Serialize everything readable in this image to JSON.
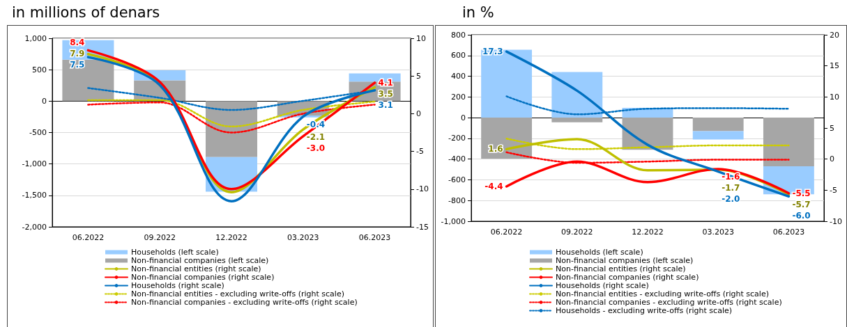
{
  "chart_data": [
    {
      "type": "bar",
      "title": "in millions of denars",
      "categories": [
        "06.2022",
        "09.2022",
        "12.2022",
        "03.2023",
        "06.2023"
      ],
      "stacked": true,
      "grid": "y",
      "legend": "bottom",
      "ylim": [
        -2000,
        1000
      ],
      "yticks": [
        {
          "value": -2000,
          "label": "-2,000"
        },
        {
          "value": -1500,
          "label": "-1,500"
        },
        {
          "value": -1000,
          "label": "-1,000"
        },
        -500,
        0,
        500,
        {
          "value": 1000,
          "label": "1,000"
        }
      ],
      "y2lim": [
        -15,
        10
      ],
      "y2ticks": [
        -15,
        -10,
        -5,
        0,
        5,
        10
      ],
      "series": [
        {
          "name": "Non-financial companies (left scale)",
          "color": "#a6a6a6",
          "values": [
            660,
            330,
            -890,
            -230,
            310
          ]
        },
        {
          "name": "Households (left scale)",
          "color": "#99ccff",
          "values": [
            310,
            160,
            -550,
            -30,
            130
          ]
        },
        {
          "name": "Non-financial entities (right scale)",
          "type": "line",
          "axis": "y2",
          "line_style": "solid",
          "color": "#bfbf00",
          "values": [
            7.9,
            4.0,
            -10.4,
            -2.1,
            3.5
          ],
          "value_labels": [
            "7.9",
            null,
            null,
            "-2.1",
            "3.5"
          ]
        },
        {
          "name": "Non-financial companies (right scale)",
          "type": "line",
          "axis": "y2",
          "line_style": "solid",
          "color": "#ff0000",
          "values": [
            8.4,
            4.2,
            -10.0,
            -3.0,
            4.1
          ],
          "value_labels": [
            "8.4",
            null,
            null,
            "-3.0",
            "4.1"
          ]
        },
        {
          "name": "Households (right scale)",
          "type": "line",
          "axis": "y2",
          "line_style": "solid",
          "color": "#0070c0",
          "values": [
            7.5,
            3.8,
            -11.6,
            -0.4,
            3.1
          ],
          "value_labels": [
            "7.5",
            null,
            null,
            "-0.4",
            "3.1"
          ]
        },
        {
          "name": "Non-financial entities - excluding write-offs (right scale)",
          "type": "line",
          "axis": "y2",
          "line_style": "dotted",
          "color": "#cccc00",
          "values": [
            1.8,
            1.8,
            -1.7,
            0.5,
            1.6
          ]
        },
        {
          "name": "Non-financial companies - excluding write-offs (right scale)",
          "type": "line",
          "axis": "y2",
          "line_style": "dotted",
          "color": "#ff0000",
          "values": [
            1.2,
            1.5,
            -2.5,
            0.0,
            1.2
          ]
        },
        {
          "type": "line",
          "axis": "y2",
          "line_style": "dotted",
          "color": "#0070c0",
          "values": [
            3.4,
            2.1,
            0.5,
            1.7,
            3.1
          ]
        }
      ]
    },
    {
      "type": "bar",
      "title": "in %",
      "categories": [
        "06.2022",
        "09.2022",
        "12.2022",
        "03.2023",
        "06.2023"
      ],
      "stacked": true,
      "grid": "y",
      "legend": "bottom",
      "ylim": [
        -1000,
        800
      ],
      "yticks": [
        {
          "value": -1000,
          "label": "-1,000"
        },
        -800,
        -600,
        -400,
        -200,
        0,
        200,
        400,
        600,
        800
      ],
      "y2lim": [
        -10,
        20
      ],
      "y2ticks": [
        -10,
        -5,
        0,
        5,
        10,
        15,
        20
      ],
      "series": [
        {
          "name": "Non-financial companies (left scale)",
          "color": "#a6a6a6",
          "values": [
            -395,
            -45,
            -310,
            -130,
            -470
          ]
        },
        {
          "name": "Households (left scale)",
          "color": "#99ccff",
          "values": [
            655,
            440,
            95,
            -80,
            -270
          ]
        },
        {
          "name": "Non-financial entities (right scale)",
          "type": "line",
          "axis": "y2",
          "line_style": "solid",
          "color": "#bfbf00",
          "values": [
            1.6,
            3.2,
            -1.8,
            -1.7,
            -5.7
          ],
          "value_labels": [
            "1.6",
            null,
            null,
            "-1.7",
            "-5.7"
          ]
        },
        {
          "name": "Non-financial companies (right scale)",
          "type": "line",
          "axis": "y2",
          "line_style": "solid",
          "color": "#ff0000",
          "values": [
            -4.4,
            -0.4,
            -3.7,
            -1.6,
            -5.5
          ],
          "value_labels": [
            "-4.4",
            null,
            null,
            "-1.6",
            "-5.5"
          ]
        },
        {
          "name": "Households (right scale)",
          "type": "line",
          "axis": "y2",
          "line_style": "solid",
          "color": "#0070c0",
          "values": [
            17.3,
            11.0,
            2.3,
            -2.0,
            -6.0
          ],
          "value_labels": [
            "17.3",
            null,
            null,
            "-2.0",
            "-6.0"
          ]
        },
        {
          "name": "Non-financial entities - excluding write-offs (right scale)",
          "type": "line",
          "axis": "y2",
          "line_style": "dotted",
          "color": "#cccc00",
          "values": [
            3.3,
            1.6,
            1.9,
            2.2,
            2.2
          ]
        },
        {
          "name": "Non-financial companies - excluding write-offs (right scale)",
          "type": "line",
          "axis": "y2",
          "line_style": "dotted",
          "color": "#ff0000",
          "values": [
            1.1,
            -0.6,
            -0.4,
            -0.1,
            -0.1
          ]
        },
        {
          "name": "Households - excluding write-offs (right scale)",
          "type": "line",
          "axis": "y2",
          "line_style": "dotted",
          "color": "#0070c0",
          "values": [
            10.1,
            7.2,
            8.1,
            8.2,
            8.1
          ]
        }
      ]
    }
  ]
}
